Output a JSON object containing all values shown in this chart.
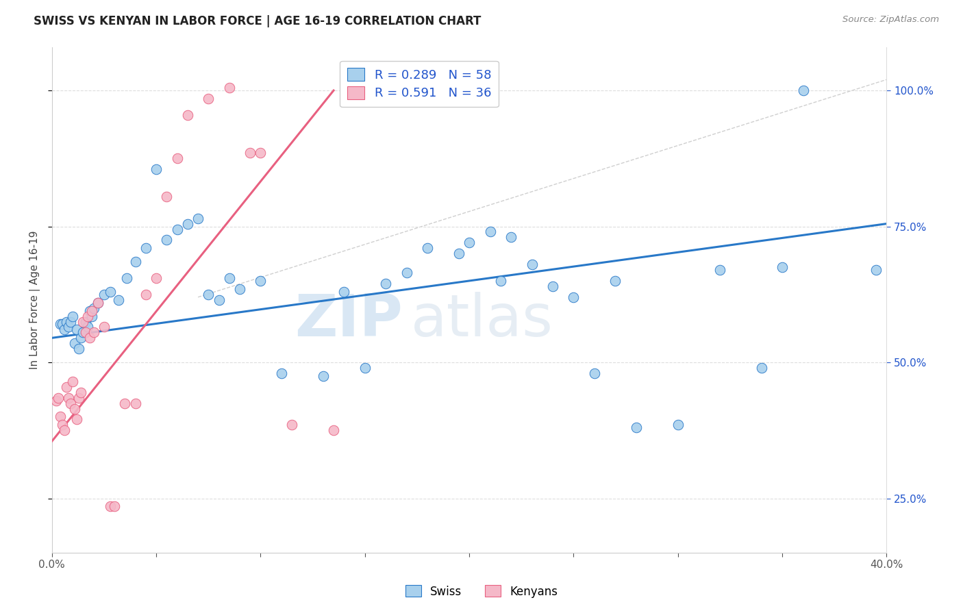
{
  "title": "SWISS VS KENYAN IN LABOR FORCE | AGE 16-19 CORRELATION CHART",
  "source": "Source: ZipAtlas.com",
  "ylabel": "In Labor Force | Age 16-19",
  "xlim": [
    0.0,
    0.4
  ],
  "ylim": [
    0.15,
    1.08
  ],
  "legend_r_swiss": "0.289",
  "legend_n_swiss": "58",
  "legend_r_kenyan": "0.591",
  "legend_n_kenyan": "36",
  "swiss_color": "#A8D0ED",
  "kenyan_color": "#F5B8C8",
  "swiss_line_color": "#2878C8",
  "kenyan_line_color": "#E86080",
  "r_value_color": "#2255CC",
  "watermark_zip": "ZIP",
  "watermark_atlas": "atlas",
  "swiss_scatter_x": [
    0.004,
    0.005,
    0.006,
    0.007,
    0.008,
    0.009,
    0.01,
    0.011,
    0.012,
    0.013,
    0.014,
    0.015,
    0.016,
    0.017,
    0.018,
    0.019,
    0.02,
    0.022,
    0.025,
    0.028,
    0.032,
    0.036,
    0.04,
    0.045,
    0.05,
    0.055,
    0.06,
    0.065,
    0.07,
    0.075,
    0.08,
    0.085,
    0.09,
    0.1,
    0.11,
    0.13,
    0.14,
    0.15,
    0.16,
    0.17,
    0.18,
    0.195,
    0.2,
    0.21,
    0.215,
    0.22,
    0.23,
    0.24,
    0.25,
    0.26,
    0.27,
    0.28,
    0.3,
    0.32,
    0.34,
    0.35,
    0.36,
    0.395
  ],
  "swiss_scatter_y": [
    0.57,
    0.57,
    0.56,
    0.575,
    0.565,
    0.575,
    0.585,
    0.535,
    0.56,
    0.525,
    0.545,
    0.555,
    0.575,
    0.565,
    0.595,
    0.585,
    0.6,
    0.61,
    0.625,
    0.63,
    0.615,
    0.655,
    0.685,
    0.71,
    0.855,
    0.725,
    0.745,
    0.755,
    0.765,
    0.625,
    0.615,
    0.655,
    0.635,
    0.65,
    0.48,
    0.475,
    0.63,
    0.49,
    0.645,
    0.665,
    0.71,
    0.7,
    0.72,
    0.74,
    0.65,
    0.73,
    0.68,
    0.64,
    0.62,
    0.48,
    0.65,
    0.38,
    0.385,
    0.67,
    0.49,
    0.675,
    1.0,
    0.67
  ],
  "kenyan_scatter_x": [
    0.002,
    0.003,
    0.004,
    0.005,
    0.006,
    0.007,
    0.008,
    0.009,
    0.01,
    0.011,
    0.012,
    0.013,
    0.014,
    0.015,
    0.016,
    0.017,
    0.018,
    0.019,
    0.02,
    0.022,
    0.025,
    0.028,
    0.03,
    0.035,
    0.04,
    0.045,
    0.05,
    0.055,
    0.06,
    0.065,
    0.075,
    0.085,
    0.095,
    0.1,
    0.115,
    0.135
  ],
  "kenyan_scatter_y": [
    0.43,
    0.435,
    0.4,
    0.385,
    0.375,
    0.455,
    0.435,
    0.425,
    0.465,
    0.415,
    0.395,
    0.435,
    0.445,
    0.575,
    0.555,
    0.585,
    0.545,
    0.595,
    0.555,
    0.61,
    0.565,
    0.235,
    0.235,
    0.425,
    0.425,
    0.625,
    0.655,
    0.805,
    0.875,
    0.955,
    0.985,
    1.005,
    0.885,
    0.885,
    0.385,
    0.375
  ],
  "swiss_trend_x": [
    0.0,
    0.4
  ],
  "swiss_trend_y": [
    0.545,
    0.755
  ],
  "kenyan_trend_x": [
    0.0,
    0.135
  ],
  "kenyan_trend_y": [
    0.355,
    1.0
  ],
  "diag_line_x": [
    0.07,
    0.4
  ],
  "diag_line_y": [
    0.62,
    1.02
  ]
}
